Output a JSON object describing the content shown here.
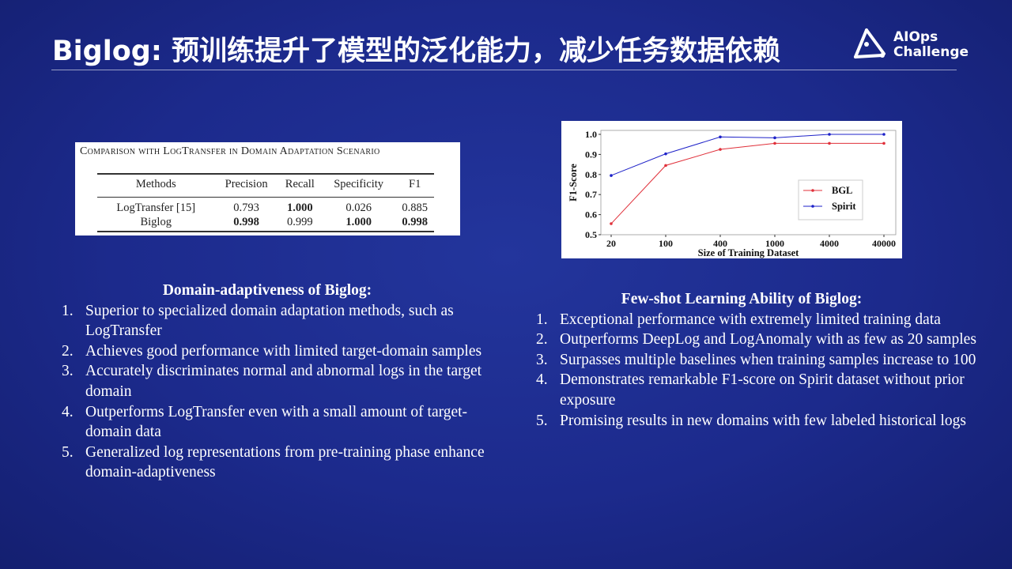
{
  "title": "Biglog: 预训练提升了模型的泛化能力，减少任务数据依赖",
  "logo": {
    "line1": "AIOps",
    "line2": "Challenge"
  },
  "table": {
    "caption": "Comparison with LogTransfer in Domain Adaptation Scenario",
    "headers": [
      "Methods",
      "Precision",
      "Recall",
      "Specificity",
      "F1"
    ],
    "rows": [
      [
        "LogTransfer [15]",
        "0.793",
        "1.000",
        "0.026",
        "0.885"
      ],
      [
        "Biglog",
        "0.998",
        "0.999",
        "1.000",
        "0.998"
      ]
    ],
    "bold": [
      [
        false,
        false,
        true,
        false,
        false
      ],
      [
        false,
        true,
        false,
        true,
        true
      ]
    ]
  },
  "chart_data": {
    "type": "line",
    "xlabel": "Size of Training Dataset",
    "ylabel": "F1-Score",
    "categories": [
      "20",
      "100",
      "400",
      "1000",
      "4000",
      "40000"
    ],
    "ylim": [
      0.5,
      1.0
    ],
    "yticks": [
      "0.5",
      "0.6",
      "0.7",
      "0.8",
      "0.9",
      "1.0"
    ],
    "legend": "center-right",
    "series": [
      {
        "name": "BGL",
        "color": "#e0303a",
        "values": [
          0.555,
          0.845,
          0.925,
          0.955,
          0.955,
          0.955
        ]
      },
      {
        "name": "Spirit",
        "color": "#1e22c8",
        "values": [
          0.795,
          0.903,
          0.987,
          0.983,
          1.0,
          1.0
        ]
      }
    ]
  },
  "left": {
    "heading": "Domain-adaptiveness of Biglog:",
    "items": [
      "Superior to specialized domain adaptation methods, such as LogTransfer",
      "Achieves good performance with limited target-domain samples",
      "Accurately discriminates normal and abnormal logs in the target domain",
      "Outperforms LogTransfer even with a small amount of target-domain data",
      "Generalized log representations from pre-training phase enhance domain-adaptiveness"
    ]
  },
  "right": {
    "heading": "Few-shot Learning Ability of Biglog:",
    "items": [
      "Exceptional performance with extremely limited training data",
      "Outperforms DeepLog and LogAnomaly with as few as 20 samples",
      "Surpasses multiple baselines when training samples increase to 100",
      "Demonstrates remarkable F1-score on Spirit dataset without prior exposure",
      "Promising results in new domains with few labeled historical logs"
    ]
  }
}
